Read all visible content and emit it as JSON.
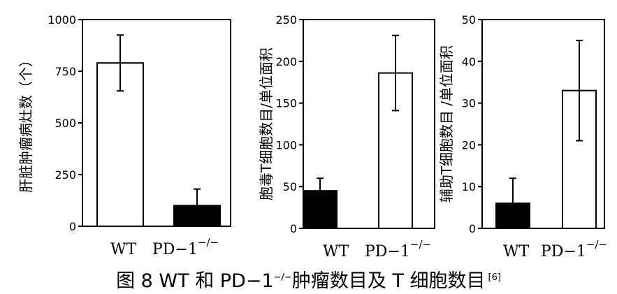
{
  "caption": {
    "prefix": "图 8   WT 和 PD−1",
    "superscript": "−/−",
    "suffix": "肿瘤数目及 T 细胞数目",
    "reference": "[6]"
  },
  "chart_data": [
    {
      "type": "bar",
      "title": "",
      "ylabel": "肝脏肿瘤病灶数（个）",
      "ylim": [
        0,
        1000
      ],
      "yticks": [
        0,
        250,
        500,
        750,
        1000
      ],
      "ytick_labels": [
        "0",
        "250",
        "500",
        "750",
        "1000"
      ],
      "categories": [
        {
          "base": "WT",
          "sup": ""
        },
        {
          "base": "PD−1",
          "sup": "−/−"
        }
      ],
      "values": [
        790,
        100
      ],
      "errors": [
        135,
        80
      ],
      "bar_colors": [
        "#ffffff",
        "#000000"
      ]
    },
    {
      "type": "bar",
      "title": "",
      "ylabel": "胞毒T细胞数目/单位面积",
      "ylim": [
        0,
        250
      ],
      "yticks": [
        0,
        50,
        100,
        150,
        200,
        250
      ],
      "ytick_labels": [
        "0",
        "50",
        "100",
        "150",
        "200",
        "250"
      ],
      "categories": [
        {
          "base": "WT",
          "sup": ""
        },
        {
          "base": "PD−1",
          "sup": "−/−"
        }
      ],
      "values": [
        45,
        186
      ],
      "errors": [
        15,
        45
      ],
      "bar_colors": [
        "#000000",
        "#ffffff"
      ]
    },
    {
      "type": "bar",
      "title": "",
      "ylabel": "辅助T细胞数目 /单位面积",
      "ylim": [
        0,
        50
      ],
      "yticks": [
        0,
        10,
        20,
        30,
        40,
        50
      ],
      "ytick_labels": [
        "0",
        "10",
        "20",
        "30",
        "40",
        "50"
      ],
      "categories": [
        {
          "base": "WT",
          "sup": ""
        },
        {
          "base": "PD−1",
          "sup": "−/−"
        }
      ],
      "values": [
        6,
        33
      ],
      "errors": [
        6,
        12
      ],
      "bar_colors": [
        "#000000",
        "#ffffff"
      ]
    }
  ]
}
